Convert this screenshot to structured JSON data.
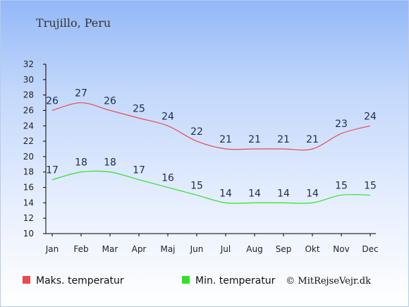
{
  "chart_data": {
    "type": "line",
    "title": "Trujillo, Peru",
    "categories": [
      "Jan",
      "Feb",
      "Mar",
      "Apr",
      "Maj",
      "Jun",
      "Jul",
      "Aug",
      "Sep",
      "Okt",
      "Nov",
      "Dec"
    ],
    "series": [
      {
        "name": "Maks. temperatur",
        "color": "#e84c4c",
        "values": [
          26,
          27,
          26,
          25,
          24,
          22,
          21,
          21,
          21,
          21,
          23,
          24
        ]
      },
      {
        "name": "Min. temperatur",
        "color": "#33e02a",
        "values": [
          17,
          18,
          18,
          17,
          16,
          15,
          14,
          14,
          14,
          14,
          15,
          15
        ]
      }
    ],
    "ylim": [
      10,
      32
    ],
    "yticks": [
      10,
      12,
      14,
      16,
      18,
      20,
      22,
      24,
      26,
      28,
      30,
      32
    ],
    "grid": false,
    "legend_position": "bottom-left"
  },
  "credit": "© MitRejseVejr.dk"
}
